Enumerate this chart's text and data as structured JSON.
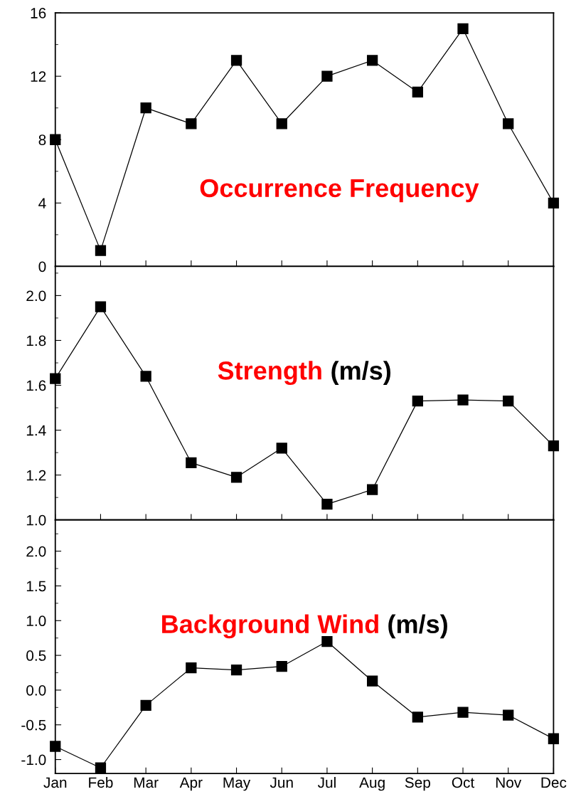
{
  "chart_data": [
    {
      "type": "line",
      "title": "Occurrence Frequency",
      "categories": [
        null,
        null,
        null,
        null,
        null,
        null,
        null,
        null,
        null,
        null,
        null,
        null
      ],
      "series": [
        {
          "color": "#000000",
          "values": [
            8,
            1,
            10,
            9,
            13,
            9,
            12,
            13,
            11,
            15,
            9,
            4
          ]
        }
      ],
      "ylim": [
        0,
        16
      ],
      "yticks": [
        0,
        4,
        8,
        12,
        16
      ],
      "marker": "square",
      "line_style": "solid",
      "grid": false,
      "legend": false,
      "tick_labels": "y"
    },
    {
      "type": "line",
      "title": "Strength",
      "subtitle": "(m/s)",
      "categories": [
        null,
        null,
        null,
        null,
        null,
        null,
        null,
        null,
        null,
        null,
        null,
        null
      ],
      "series": [
        {
          "color": "#000000",
          "values": [
            1.63,
            1.95,
            1.64,
            1.255,
            1.19,
            1.32,
            1.07,
            1.135,
            1.53,
            1.535,
            1.53,
            1.33
          ]
        }
      ],
      "ylim": [
        1.0,
        2.13
      ],
      "yticks": [
        {
          "value": 1.0,
          "label": "1.0"
        },
        {
          "value": 1.2,
          "label": "1.2"
        },
        {
          "value": 1.4,
          "label": "1.4"
        },
        {
          "value": 1.6,
          "label": "1.6"
        },
        {
          "value": 1.8,
          "label": "1.8"
        },
        {
          "value": 2.0,
          "label": "2.0"
        }
      ],
      "marker": "square",
      "line_style": "solid",
      "grid": false,
      "legend": false,
      "tick_labels": "y"
    },
    {
      "type": "line",
      "title": "Background Wind",
      "subtitle": "(m/s)",
      "categories": [
        "Jan",
        "Feb",
        "Mar",
        "Apr",
        "May",
        "Jun",
        "Jul",
        "Aug",
        "Sep",
        "Oct",
        "Nov",
        "Dec"
      ],
      "series": [
        {
          "color": "#000000",
          "values": [
            -0.81,
            -1.12,
            -0.22,
            0.32,
            0.29,
            0.34,
            0.7,
            0.13,
            -0.39,
            -0.32,
            -0.36,
            -0.7
          ]
        }
      ],
      "ylim": [
        -1.2,
        2.45
      ],
      "yticks": [
        {
          "value": -1.0,
          "label": "-1.0"
        },
        {
          "value": -0.5,
          "label": "-0.5"
        },
        {
          "value": 0.0,
          "label": "0.0"
        },
        {
          "value": 0.5,
          "label": "0.5"
        },
        {
          "value": 1.0,
          "label": "1.0"
        },
        {
          "value": 1.5,
          "label": "1.5"
        },
        {
          "value": 2.0,
          "label": "2.0"
        }
      ],
      "marker": "square",
      "line_style": "solid",
      "grid": false,
      "legend": false
    }
  ]
}
